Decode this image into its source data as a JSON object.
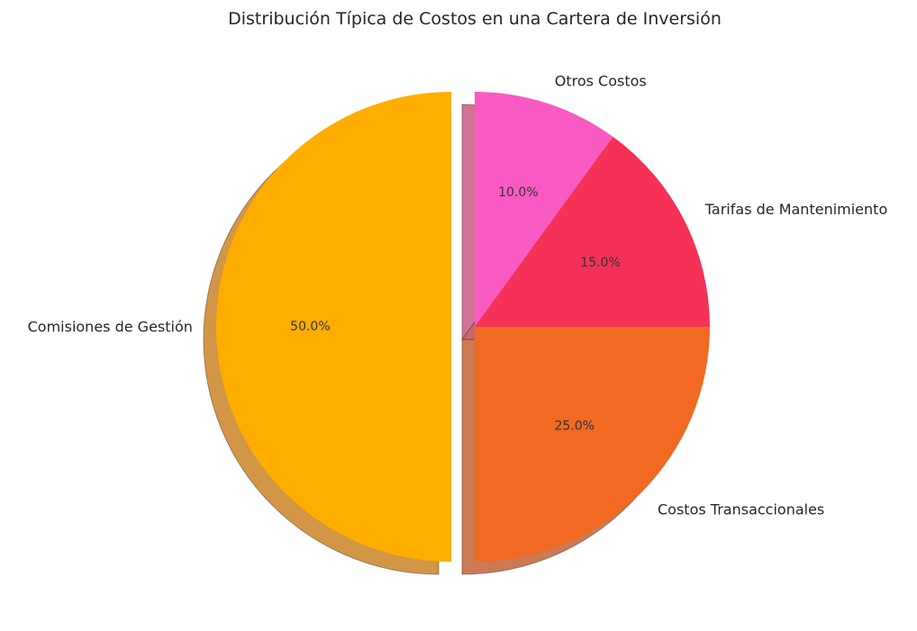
{
  "chart_data": {
    "type": "pie",
    "title": "Distribución Típica de Costos en una Cartera de Inversión",
    "start_angle_deg": 90,
    "direction": "counterclockwise",
    "shadow": true,
    "slices": [
      {
        "label": "Comisiones de Gestión",
        "value": 50,
        "pct_label": "50.0%",
        "color": "#FFAE00",
        "exploded": true
      },
      {
        "label": "Costos Transaccionales",
        "value": 25,
        "pct_label": "25.0%",
        "color": "#F26922",
        "exploded": false
      },
      {
        "label": "Tarifas de Mantenimiento",
        "value": 15,
        "pct_label": "15.0%",
        "color": "#F53158",
        "exploded": false
      },
      {
        "label": "Otros Costos",
        "value": 10,
        "pct_label": "10.0%",
        "color": "#F95BC3",
        "exploded": false
      }
    ]
  }
}
